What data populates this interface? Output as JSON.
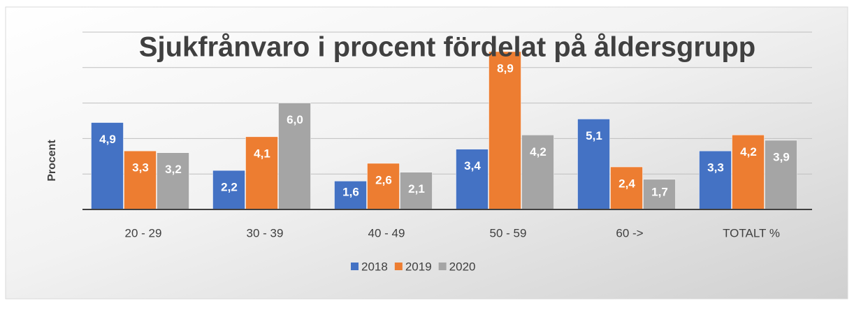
{
  "chart_data": {
    "type": "bar",
    "title": "Sjukfrånvaro i procent fördelat på åldersgrupp",
    "y_label": "Procent",
    "categories": [
      "20 - 29",
      "30 - 39",
      "40 - 49",
      "50 - 59",
      "60 ->",
      "TOTALT %"
    ],
    "series": [
      {
        "name": "2018",
        "color": "#4472c4",
        "values": [
          4.9,
          2.2,
          1.6,
          3.4,
          5.1,
          3.3
        ],
        "value_labels": [
          "4,9",
          "2,2",
          "1,6",
          "3,4",
          "5,1",
          "3,3"
        ]
      },
      {
        "name": "2019",
        "color": "#ed7d31",
        "values": [
          3.3,
          4.1,
          2.6,
          8.9,
          2.4,
          4.2
        ],
        "value_labels": [
          "3,3",
          "4,1",
          "2,6",
          "8,9",
          "2,4",
          "4,2"
        ]
      },
      {
        "name": "2020",
        "color": "#a5a5a5",
        "values": [
          3.2,
          6.0,
          2.1,
          4.2,
          1.7,
          3.9
        ],
        "value_labels": [
          "3,2",
          "6,0",
          "2,1",
          "4,2",
          "1,7",
          "3,9"
        ]
      }
    ],
    "ylim": [
      0,
      10
    ],
    "yticks": [
      0,
      2,
      4,
      6,
      8,
      10
    ],
    "grid": true,
    "legend": "bottom"
  }
}
